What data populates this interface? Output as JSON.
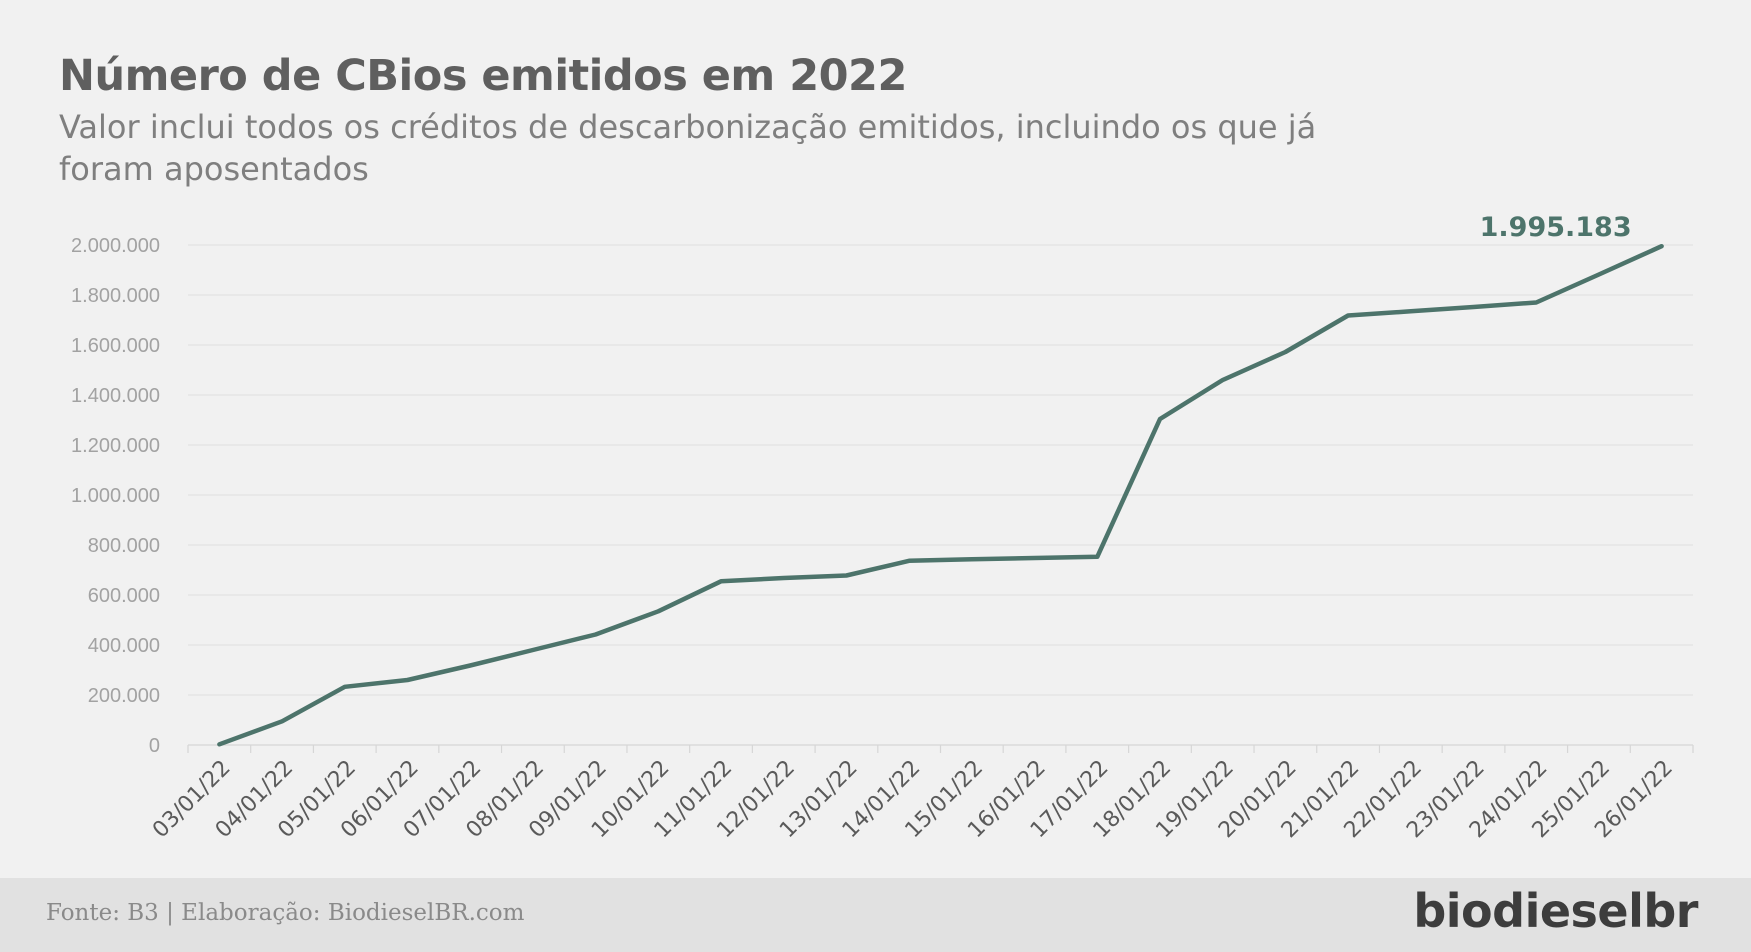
{
  "header": {
    "title": "Número de CBios emitidos em 2022",
    "subtitle": "Valor inclui todos os créditos de descarbonização emitidos, incluindo os que já foram aposentados"
  },
  "chart_data": {
    "type": "line",
    "title": "Número de CBios emitidos em 2022",
    "subtitle": "Valor inclui todos os créditos de descarbonização emitidos, incluindo os que já foram aposentados",
    "xlabel": "",
    "ylabel": "",
    "ylim": [
      0,
      2000000
    ],
    "yticks": [
      0,
      200000,
      400000,
      600000,
      800000,
      1000000,
      1200000,
      1400000,
      1600000,
      1800000,
      2000000
    ],
    "ytick_labels": [
      "0",
      "200.000",
      "400.000",
      "600.000",
      "800.000",
      "1.000.000",
      "1.200.000",
      "1.400.000",
      "1.600.000",
      "1.800.000",
      "2.000.000"
    ],
    "grid": true,
    "categories": [
      "03/01/22",
      "04/01/22",
      "05/01/22",
      "06/01/22",
      "07/01/22",
      "08/01/22",
      "09/01/22",
      "10/01/22",
      "11/01/22",
      "12/01/22",
      "13/01/22",
      "14/01/22",
      "15/01/22",
      "16/01/22",
      "17/01/22",
      "18/01/22",
      "19/01/22",
      "20/01/22",
      "21/01/22",
      "22/01/22",
      "23/01/22",
      "24/01/22",
      "25/01/22",
      "26/01/22"
    ],
    "series": [
      {
        "values": [
          3000,
          95000,
          233000,
          260000,
          318000,
          380000,
          442000,
          535000,
          655000,
          668000,
          678000,
          737000,
          743000,
          748000,
          753000,
          1304000,
          1460000,
          1572000,
          1718000,
          1735000,
          1752000,
          1770000,
          1882000,
          1995183
        ]
      }
    ],
    "annotations": [
      {
        "category": "26/01/22",
        "text": "1.995.183"
      }
    ],
    "line_color": "#4d746b"
  },
  "footer": {
    "source": "Fonte: B3 | Elaboração: BiodieselBR.com",
    "logo": "biodieselbr"
  }
}
